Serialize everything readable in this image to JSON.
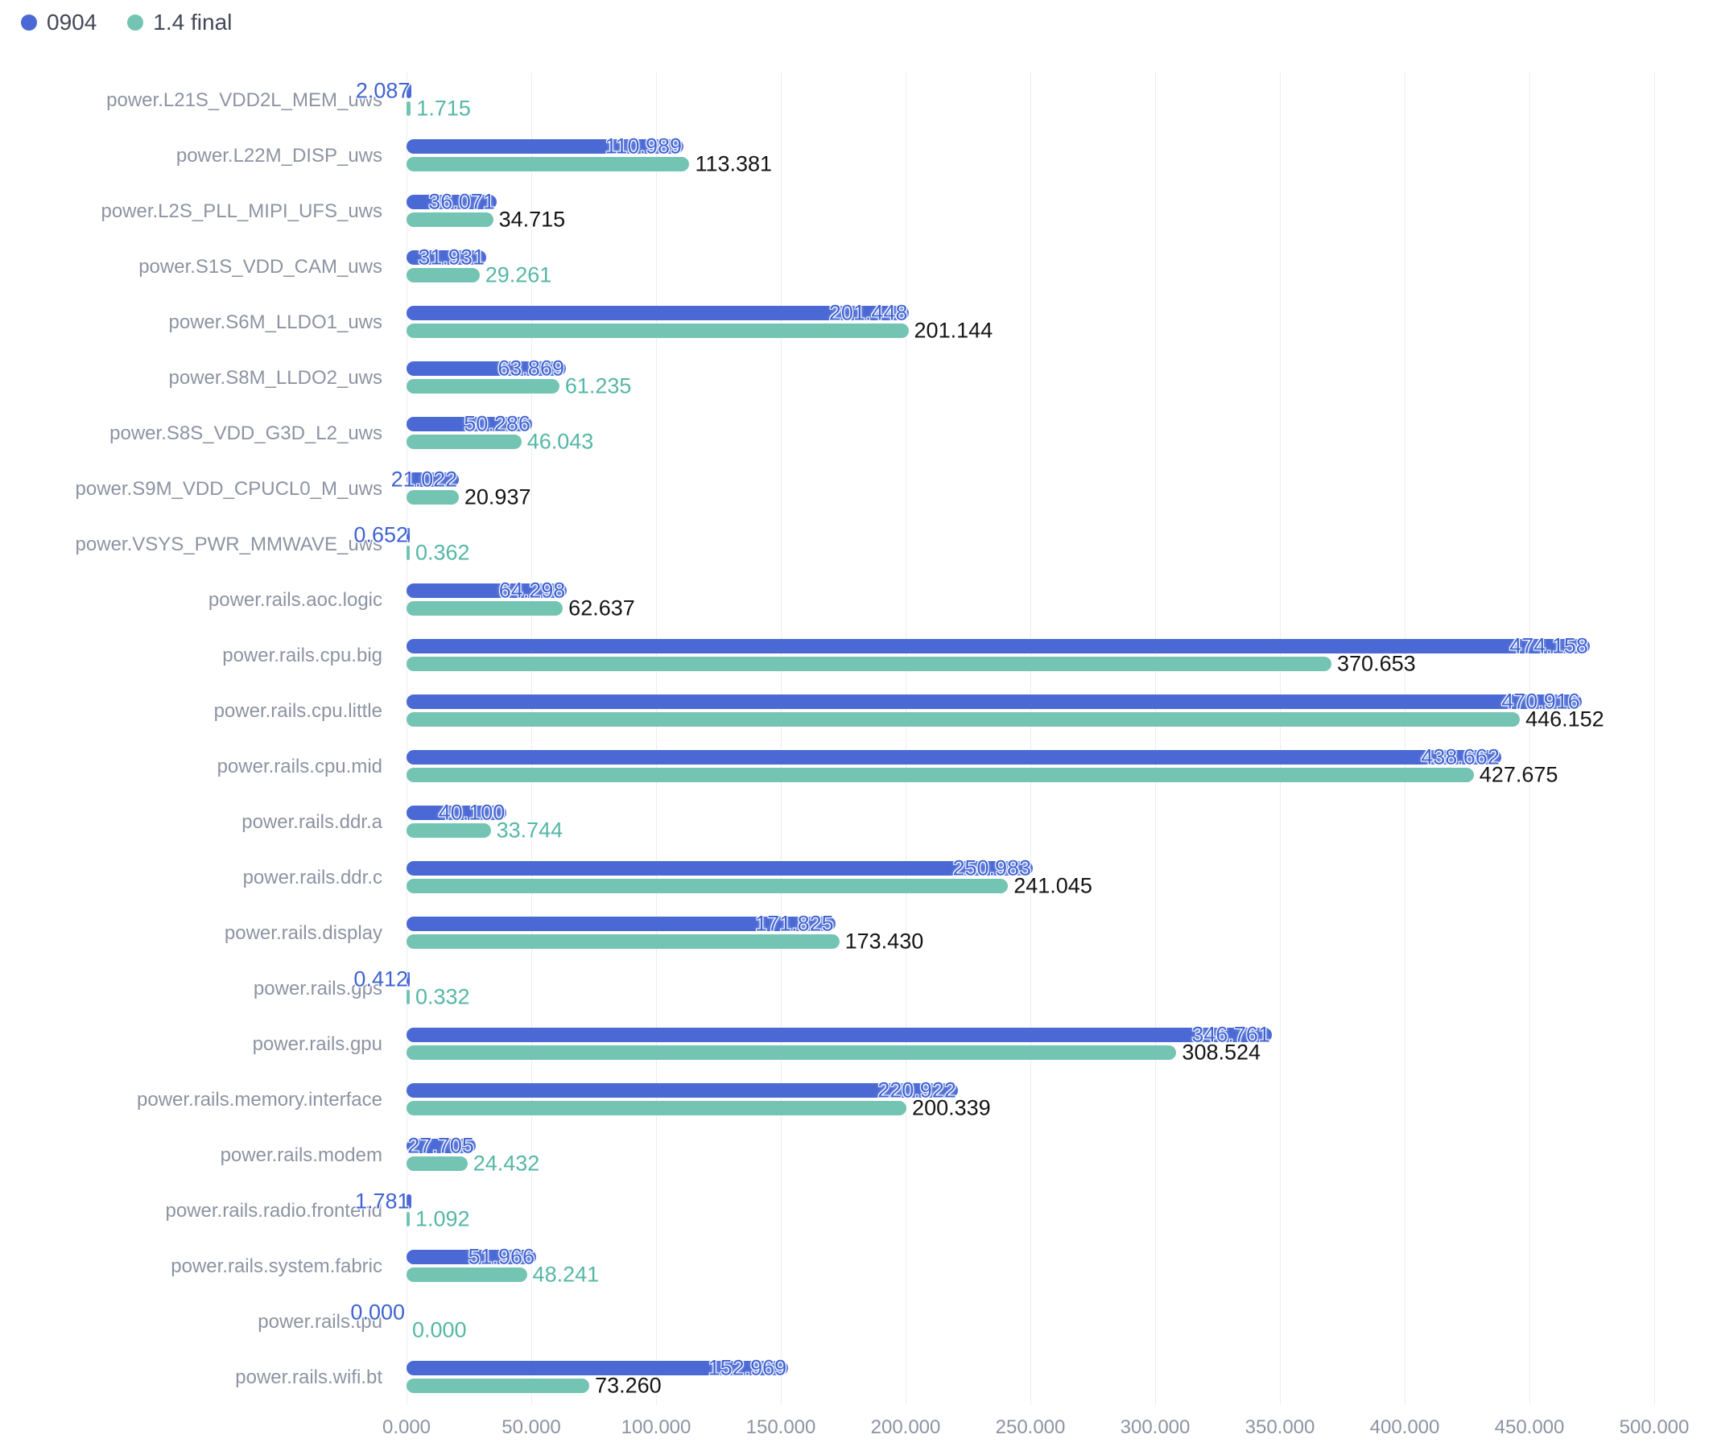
{
  "legend": {
    "items": [
      {
        "label": "0904",
        "color": "#4a69d5"
      },
      {
        "label": "1.4 final",
        "color": "#74c4b3"
      }
    ]
  },
  "colors": {
    "series1_bar": "#4a69d5",
    "series2_bar": "#74c4b3",
    "series1_value_label": "#3f63d2",
    "series2_value_label_teal": "#55b7a6",
    "series2_value_label_black": "#141414",
    "axis_text": "#8d93a2",
    "gridline": "#ebedf2",
    "background": "#ffffff"
  },
  "chart_data": {
    "type": "bar",
    "orientation": "horizontal",
    "title": "",
    "xlabel": "",
    "ylabel": "",
    "xlim": [
      0,
      500
    ],
    "grid": true,
    "legend_position": "top-left",
    "value_label_decimals": 3,
    "x_ticks": [
      "0.000",
      "50.000",
      "100.000",
      "150.000",
      "200.000",
      "250.000",
      "300.000",
      "350.000",
      "400.000",
      "450.000",
      "500.000"
    ],
    "categories": [
      "power.L21S_VDD2L_MEM_uws",
      "power.L22M_DISP_uws",
      "power.L2S_PLL_MIPI_UFS_uws",
      "power.S1S_VDD_CAM_uws",
      "power.S6M_LLDO1_uws",
      "power.S8M_LLDO2_uws",
      "power.S8S_VDD_G3D_L2_uws",
      "power.S9M_VDD_CPUCL0_M_uws",
      "power.VSYS_PWR_MMWAVE_uws",
      "power.rails.aoc.logic",
      "power.rails.cpu.big",
      "power.rails.cpu.little",
      "power.rails.cpu.mid",
      "power.rails.ddr.a",
      "power.rails.ddr.c",
      "power.rails.display",
      "power.rails.gps",
      "power.rails.gpu",
      "power.rails.memory.interface",
      "power.rails.modem",
      "power.rails.radio.frontend",
      "power.rails.system.fabric",
      "power.rails.tpu",
      "power.rails.wifi.bt"
    ],
    "series": [
      {
        "name": "0904",
        "values": [
          2.087,
          110.989,
          36.071,
          31.931,
          201.448,
          63.869,
          50.286,
          21.022,
          0.652,
          64.298,
          474.158,
          470.916,
          438.662,
          40.1,
          250.983,
          171.825,
          0.412,
          346.761,
          220.922,
          27.705,
          1.781,
          51.966,
          0.0,
          152.969
        ]
      },
      {
        "name": "1.4 final",
        "values": [
          1.715,
          113.381,
          34.715,
          29.261,
          201.144,
          61.235,
          46.043,
          20.937,
          0.362,
          62.637,
          370.653,
          446.152,
          427.675,
          33.744,
          241.045,
          173.43,
          0.332,
          308.524,
          200.339,
          24.432,
          1.092,
          48.241,
          0.0,
          73.26
        ]
      }
    ],
    "series2_label_color": [
      "teal",
      "black",
      "black",
      "teal",
      "black",
      "teal",
      "teal",
      "black",
      "teal",
      "black",
      "black",
      "black",
      "black",
      "teal",
      "black",
      "black",
      "teal",
      "black",
      "black",
      "teal",
      "teal",
      "teal",
      "teal",
      "black"
    ]
  }
}
